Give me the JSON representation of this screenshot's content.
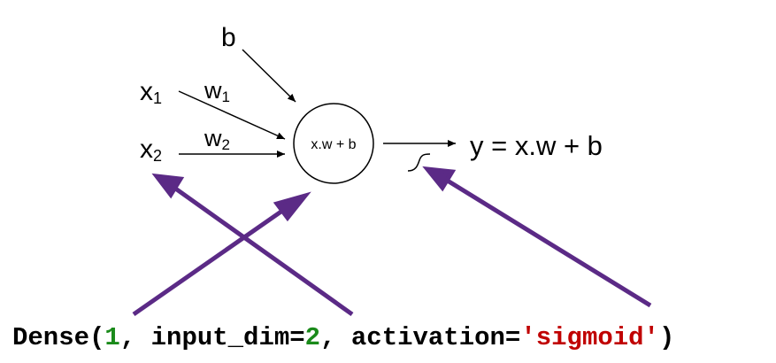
{
  "diagram": {
    "bias_label": "b",
    "input1": {
      "name": "x",
      "sub": "1"
    },
    "input2": {
      "name": "x",
      "sub": "2"
    },
    "weight1": {
      "name": "w",
      "sub": "1"
    },
    "weight2": {
      "name": "w",
      "sub": "2"
    },
    "node_label": "x.w + b",
    "output_label": "y = x.w + b",
    "sigmoid_symbol": "∫"
  },
  "code": {
    "prefix": "Dense(",
    "units": "1",
    "mid": ", input_dim=",
    "input_dim": "2",
    "act_prefix": ", activation=",
    "activation": "'sigmoid'",
    "suffix": ")"
  },
  "colors": {
    "arrow": "#5b2a86",
    "number": "#1a8a1a",
    "string": "#c00000"
  }
}
